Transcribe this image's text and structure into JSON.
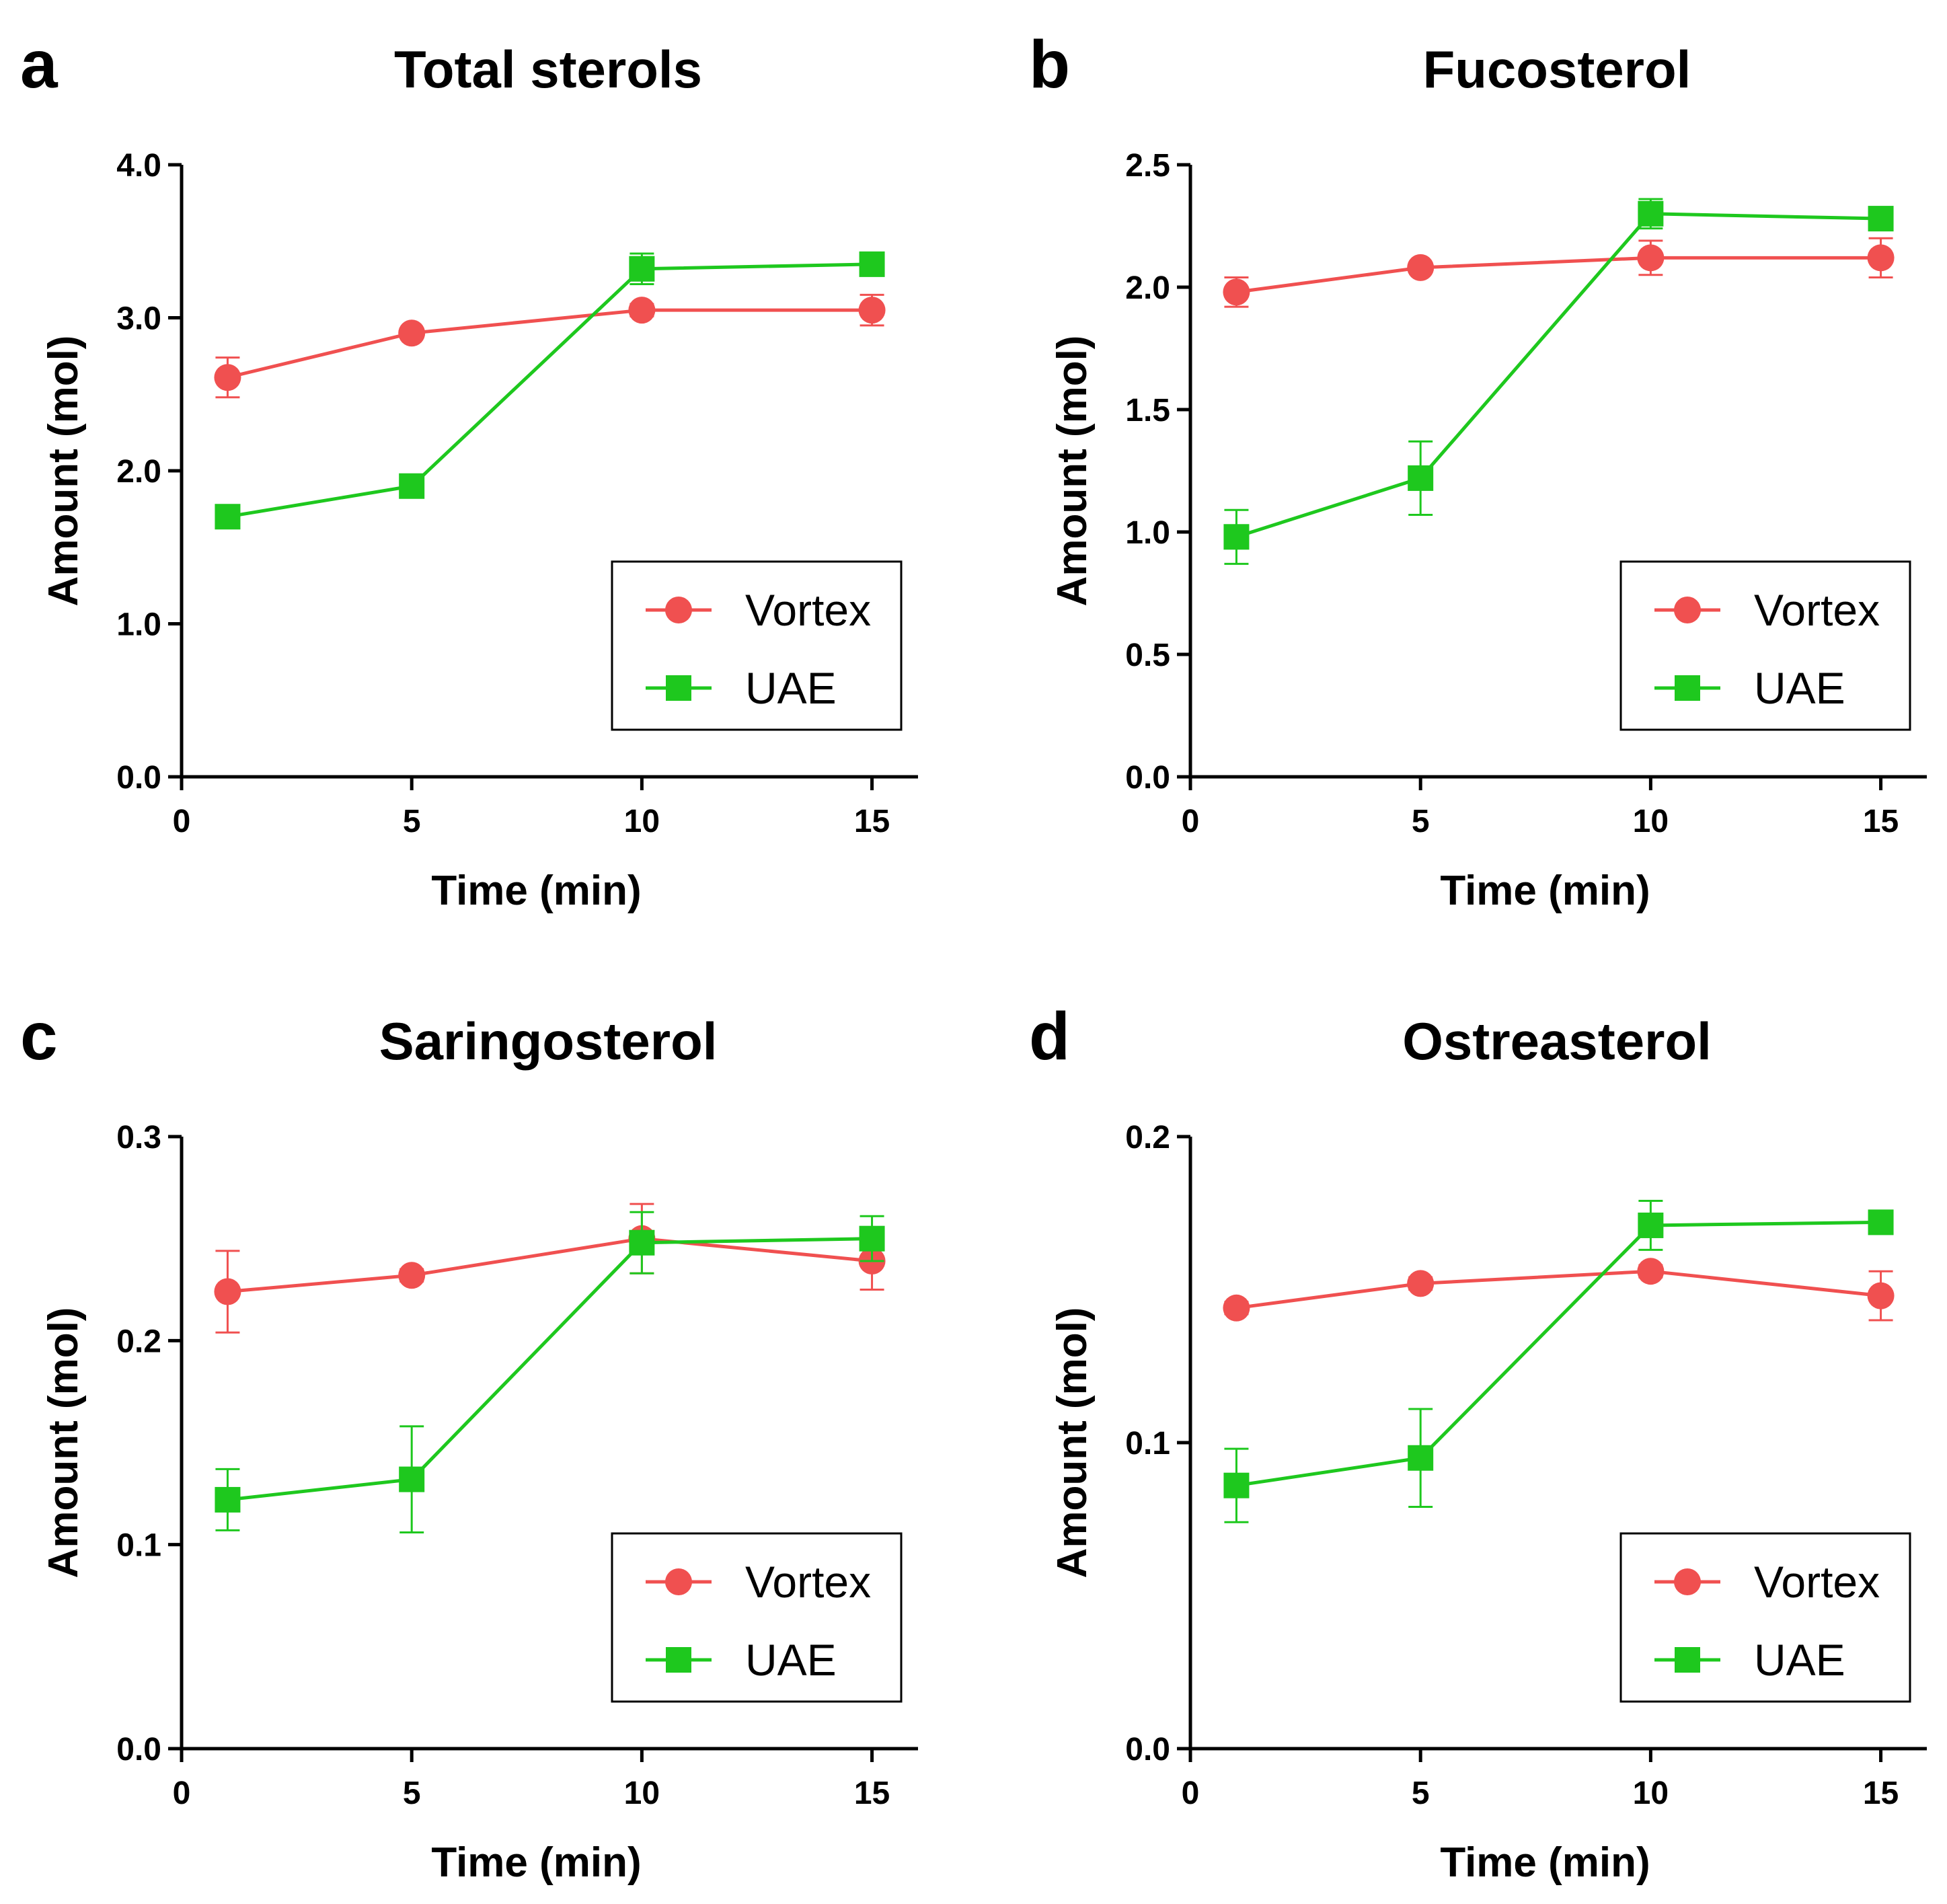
{
  "figure": {
    "legend_position": "lower-right",
    "colors": {
      "Vortex": "#f05050",
      "UAE": "#1ec81e"
    }
  },
  "chart_data": [
    {
      "type": "line",
      "panel": "a",
      "title": "Total sterols",
      "xlabel": "Time (min)",
      "ylabel": "Amount (mol)",
      "xlim": [
        0,
        16
      ],
      "ylim": [
        0,
        4
      ],
      "xticks": [
        0,
        5,
        10,
        15
      ],
      "yticks": [
        0,
        1,
        2,
        3,
        4
      ],
      "ytick_labels": [
        "0.0",
        "1.0",
        "2.0",
        "3.0",
        "4.0"
      ],
      "x": [
        1,
        5,
        10,
        15
      ],
      "series": [
        {
          "name": "Vortex",
          "marker": "circle",
          "color": "#f05050",
          "values": [
            2.61,
            2.9,
            3.05,
            3.05
          ],
          "errors": [
            0.13,
            0.03,
            0.04,
            0.1
          ]
        },
        {
          "name": "UAE",
          "marker": "square",
          "color": "#1ec81e",
          "values": [
            1.7,
            1.9,
            3.32,
            3.35
          ],
          "errors": [
            0.07,
            0.04,
            0.1,
            0.04
          ]
        }
      ]
    },
    {
      "type": "line",
      "panel": "b",
      "title": "Fucosterol",
      "xlabel": "Time (min)",
      "ylabel": "Amount (mol)",
      "xlim": [
        0,
        16
      ],
      "ylim": [
        0,
        2.5
      ],
      "xticks": [
        0,
        5,
        10,
        15
      ],
      "yticks": [
        0,
        0.5,
        1,
        1.5,
        2,
        2.5
      ],
      "ytick_labels": [
        "0.0",
        "0.5",
        "1.0",
        "1.5",
        "2.0",
        "2.5"
      ],
      "x": [
        1,
        5,
        10,
        15
      ],
      "series": [
        {
          "name": "Vortex",
          "marker": "circle",
          "color": "#f05050",
          "values": [
            1.98,
            2.08,
            2.12,
            2.12
          ],
          "errors": [
            0.06,
            0.02,
            0.07,
            0.08
          ]
        },
        {
          "name": "UAE",
          "marker": "square",
          "color": "#1ec81e",
          "values": [
            0.98,
            1.22,
            2.3,
            2.28
          ],
          "errors": [
            0.11,
            0.15,
            0.06,
            0.03
          ]
        }
      ]
    },
    {
      "type": "line",
      "panel": "c",
      "title": "Saringosterol",
      "xlabel": "Time (min)",
      "ylabel": "Amount (mol)",
      "xlim": [
        0,
        16
      ],
      "ylim": [
        0,
        0.3
      ],
      "xticks": [
        0,
        5,
        10,
        15
      ],
      "yticks": [
        0,
        0.1,
        0.2,
        0.3
      ],
      "ytick_labels": [
        "0.0",
        "0.1",
        "0.2",
        "0.3"
      ],
      "x": [
        1,
        5,
        10,
        15
      ],
      "series": [
        {
          "name": "Vortex",
          "marker": "circle",
          "color": "#f05050",
          "values": [
            0.224,
            0.232,
            0.25,
            0.239
          ],
          "errors": [
            0.02,
            0.003,
            0.017,
            0.014
          ]
        },
        {
          "name": "UAE",
          "marker": "square",
          "color": "#1ec81e",
          "values": [
            0.122,
            0.132,
            0.248,
            0.25
          ],
          "errors": [
            0.015,
            0.026,
            0.015,
            0.011
          ]
        }
      ]
    },
    {
      "type": "line",
      "panel": "d",
      "title": "Ostreasterol",
      "xlabel": "Time (min)",
      "ylabel": "Amount (mol)",
      "xlim": [
        0,
        16
      ],
      "ylim": [
        0,
        0.2
      ],
      "xticks": [
        0,
        5,
        10,
        15
      ],
      "yticks": [
        0,
        0.1,
        0.2
      ],
      "ytick_labels": [
        "0.0",
        "0.1",
        "0.2"
      ],
      "x": [
        1,
        5,
        10,
        15
      ],
      "series": [
        {
          "name": "Vortex",
          "marker": "circle",
          "color": "#f05050",
          "values": [
            0.144,
            0.152,
            0.156,
            0.148
          ],
          "errors": [
            0.002,
            0.002,
            0.002,
            0.008
          ]
        },
        {
          "name": "UAE",
          "marker": "square",
          "color": "#1ec81e",
          "values": [
            0.086,
            0.095,
            0.171,
            0.172
          ],
          "errors": [
            0.012,
            0.016,
            0.008,
            0.002
          ]
        }
      ]
    }
  ]
}
